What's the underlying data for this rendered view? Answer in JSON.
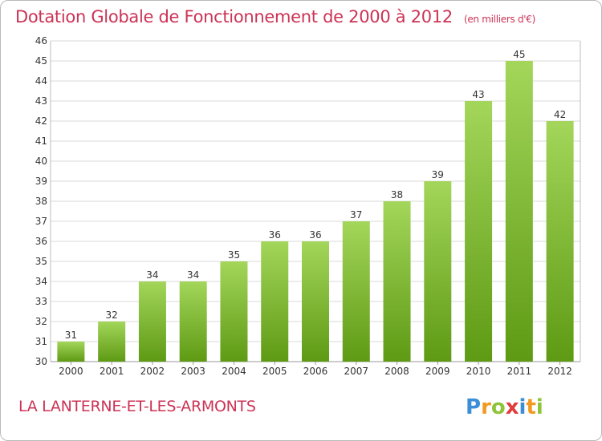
{
  "header": {
    "title": "Dotation Globale de Fonctionnement de 2000 à 2012",
    "subtitle": "(en milliers d'€)"
  },
  "footer": {
    "location": "LA LANTERNE-ET-LES-ARMONTS",
    "logo_text": "Proxiti"
  },
  "colors": {
    "title": "#cc3355",
    "bar_top": "#a3d65a",
    "bar_bottom": "#5e9a14",
    "grid": "#d9d9d9",
    "axis_text": "#333333"
  },
  "chart_data": {
    "type": "bar",
    "title": "Dotation Globale de Fonctionnement de 2000 à 2012",
    "subtitle": "(en milliers d'€)",
    "categories": [
      "2000",
      "2001",
      "2002",
      "2003",
      "2004",
      "2005",
      "2006",
      "2007",
      "2008",
      "2009",
      "2010",
      "2011",
      "2012"
    ],
    "values": [
      31,
      32,
      34,
      34,
      35,
      36,
      36,
      37,
      38,
      39,
      43,
      45,
      42
    ],
    "ylim": [
      30,
      46
    ],
    "yticks": [
      30,
      31,
      32,
      33,
      34,
      35,
      36,
      37,
      38,
      39,
      40,
      41,
      42,
      43,
      44,
      45,
      46
    ],
    "grid": true,
    "data_labels": true,
    "xlabel": "",
    "ylabel": ""
  }
}
